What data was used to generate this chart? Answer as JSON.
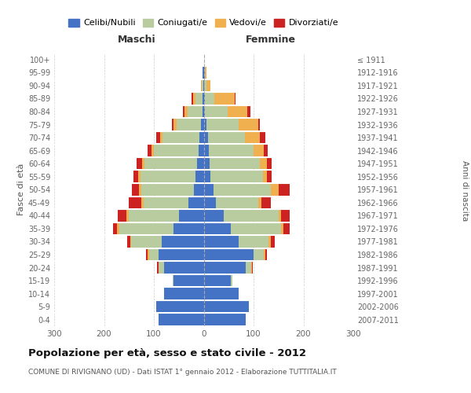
{
  "age_groups": [
    "0-4",
    "5-9",
    "10-14",
    "15-19",
    "20-24",
    "25-29",
    "30-34",
    "35-39",
    "40-44",
    "45-49",
    "50-54",
    "55-59",
    "60-64",
    "65-69",
    "70-74",
    "75-79",
    "80-84",
    "85-89",
    "90-94",
    "95-99",
    "100+"
  ],
  "birth_years": [
    "2007-2011",
    "2002-2006",
    "1997-2001",
    "1992-1996",
    "1987-1991",
    "1982-1986",
    "1977-1981",
    "1972-1976",
    "1967-1971",
    "1962-1966",
    "1957-1961",
    "1952-1956",
    "1947-1951",
    "1942-1946",
    "1937-1941",
    "1932-1936",
    "1927-1931",
    "1922-1926",
    "1917-1921",
    "1912-1916",
    "≤ 1911"
  ],
  "males": {
    "celibi": [
      90,
      95,
      80,
      60,
      80,
      90,
      85,
      60,
      50,
      30,
      20,
      16,
      14,
      10,
      8,
      5,
      3,
      2,
      1,
      2,
      0
    ],
    "coniugati": [
      0,
      0,
      0,
      2,
      10,
      20,
      60,
      110,
      100,
      90,
      105,
      110,
      105,
      90,
      75,
      50,
      30,
      15,
      3,
      1,
      0
    ],
    "vedovi": [
      0,
      0,
      0,
      0,
      1,
      2,
      3,
      4,
      5,
      5,
      5,
      5,
      5,
      5,
      5,
      5,
      5,
      5,
      2,
      0,
      0
    ],
    "divorziati": [
      0,
      0,
      0,
      0,
      2,
      3,
      5,
      8,
      18,
      25,
      14,
      10,
      10,
      8,
      8,
      3,
      3,
      2,
      0,
      0,
      0
    ]
  },
  "females": {
    "nubili": [
      85,
      90,
      70,
      55,
      85,
      100,
      70,
      55,
      40,
      25,
      20,
      14,
      12,
      10,
      8,
      5,
      3,
      2,
      1,
      2,
      0
    ],
    "coniugate": [
      0,
      0,
      0,
      2,
      10,
      20,
      60,
      100,
      110,
      85,
      115,
      105,
      100,
      90,
      75,
      65,
      45,
      20,
      5,
      1,
      0
    ],
    "vedove": [
      0,
      0,
      0,
      0,
      2,
      3,
      4,
      5,
      5,
      5,
      15,
      8,
      15,
      20,
      30,
      40,
      40,
      40,
      8,
      2,
      0
    ],
    "divorziate": [
      0,
      0,
      0,
      0,
      2,
      3,
      8,
      12,
      18,
      20,
      22,
      10,
      10,
      8,
      10,
      3,
      5,
      2,
      0,
      0,
      0
    ]
  },
  "colors": {
    "celibi": "#4472c4",
    "coniugati": "#b8cca0",
    "vedovi": "#f0b050",
    "divorziati": "#cc2222"
  },
  "xlim": 300,
  "title": "Popolazione per età, sesso e stato civile - 2012",
  "subtitle": "COMUNE DI RIVIGNANO (UD) - Dati ISTAT 1° gennaio 2012 - Elaborazione TUTTITALIA.IT",
  "ylabel_left": "Fasce di età",
  "ylabel_right": "Anni di nascita",
  "xlabel_left": "Maschi",
  "xlabel_right": "Femmine",
  "background_color": "#ffffff",
  "grid_color": "#cccccc"
}
